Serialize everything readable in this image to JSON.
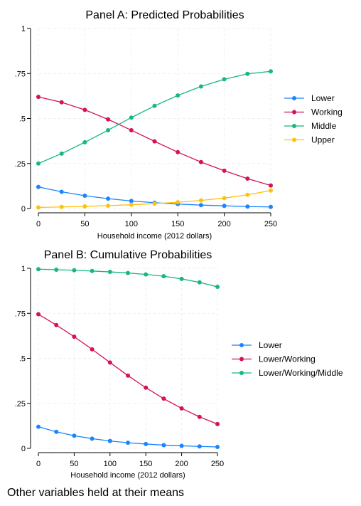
{
  "chart_data": [
    {
      "type": "line",
      "title": "Panel A: Predicted Probabilities",
      "xlabel": "Household income (2012 dollars)",
      "ylabel": "",
      "x": [
        0,
        25,
        50,
        75,
        100,
        125,
        150,
        175,
        200,
        225,
        250
      ],
      "xticks": [
        "0",
        "50",
        "100",
        "150",
        "200",
        "250"
      ],
      "yticks": [
        "0",
        ".25",
        ".5",
        ".75",
        "1"
      ],
      "xlim": [
        0,
        250
      ],
      "ylim": [
        0,
        1
      ],
      "grid": true,
      "legend": "right",
      "series": [
        {
          "name": "Lower",
          "color": "#1a85ff",
          "values": [
            0.12,
            0.093,
            0.071,
            0.055,
            0.042,
            0.032,
            0.025,
            0.019,
            0.015,
            0.011,
            0.009
          ]
        },
        {
          "name": "Working",
          "color": "#d41159",
          "values": [
            0.62,
            0.59,
            0.548,
            0.495,
            0.435,
            0.373,
            0.313,
            0.258,
            0.21,
            0.166,
            0.128
          ]
        },
        {
          "name": "Middle",
          "color": "#16b87f",
          "values": [
            0.25,
            0.305,
            0.368,
            0.435,
            0.505,
            0.57,
            0.628,
            0.678,
            0.718,
            0.748,
            0.762
          ]
        },
        {
          "name": "Upper",
          "color": "#ffc20a",
          "values": [
            0.006,
            0.009,
            0.012,
            0.016,
            0.021,
            0.027,
            0.035,
            0.045,
            0.058,
            0.076,
            0.1
          ]
        }
      ]
    },
    {
      "type": "line",
      "title": "Panel B: Cumulative Probabilities",
      "xlabel": "Household income (2012 dollars)",
      "ylabel": "",
      "x": [
        0,
        25,
        50,
        75,
        100,
        125,
        150,
        175,
        200,
        225,
        250
      ],
      "xticks": [
        "0",
        "50",
        "100",
        "150",
        "200",
        "250"
      ],
      "yticks": [
        "0",
        ".25",
        ".5",
        ".75",
        "1"
      ],
      "xlim": [
        0,
        250
      ],
      "ylim": [
        0,
        1
      ],
      "grid": true,
      "legend": "right",
      "series": [
        {
          "name": "Lower",
          "color": "#1a85ff",
          "values": [
            0.12,
            0.092,
            0.07,
            0.054,
            0.041,
            0.031,
            0.024,
            0.018,
            0.014,
            0.011,
            0.008
          ]
        },
        {
          "name": "Lower/Working",
          "color": "#d41159",
          "values": [
            0.745,
            0.685,
            0.62,
            0.55,
            0.477,
            0.404,
            0.337,
            0.276,
            0.222,
            0.175,
            0.135
          ]
        },
        {
          "name": "Lower/Working/Middle",
          "color": "#16b87f",
          "values": [
            0.995,
            0.992,
            0.989,
            0.985,
            0.98,
            0.974,
            0.966,
            0.956,
            0.941,
            0.922,
            0.897
          ]
        }
      ]
    }
  ],
  "footnote": "Other variables held at their means"
}
